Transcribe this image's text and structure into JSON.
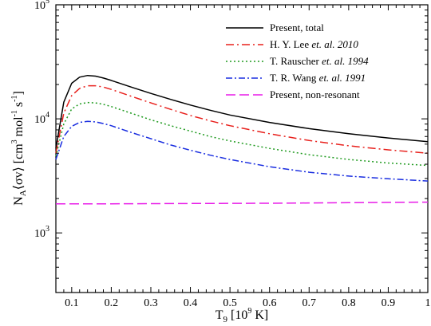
{
  "chart_data": {
    "type": "line",
    "xlabel": {
      "main": "T",
      "sub": "9",
      "rest": " [10",
      "sup": "9",
      "unit": " K]"
    },
    "ylabel": {
      "pre": "N",
      "sub": "A",
      "mid": "⟨σv⟩ [cm",
      "sup1": "3",
      "mid2": " mol",
      "sup2": "-1",
      "mid3": " s",
      "sup3": "-1",
      "post": "]"
    },
    "xlim": [
      0.06,
      1.0
    ],
    "ylim": [
      300,
      100000
    ],
    "yscale": "log",
    "x_ticks": [
      0.1,
      0.2,
      0.3,
      0.4,
      0.5,
      0.6,
      0.7,
      0.8,
      0.9,
      1.0
    ],
    "x_tick_labels": [
      "0.1",
      "0.2",
      "0.3",
      "0.4",
      "0.5",
      "0.6",
      "0.7",
      "0.8",
      "0.9",
      "1"
    ],
    "y_ticks": [
      1000,
      10000,
      100000
    ],
    "y_tick_labels": [
      {
        "base": "10",
        "exp": "3"
      },
      {
        "base": "10",
        "exp": "4"
      },
      {
        "base": "10",
        "exp": "5"
      }
    ],
    "legend_position": "top-right",
    "series": [
      {
        "name": "Present, total",
        "name_parts": [
          {
            "text": "Present, total",
            "italic": false
          }
        ],
        "color": "#000000",
        "dash": "solid",
        "x": [
          0.06,
          0.08,
          0.1,
          0.12,
          0.14,
          0.16,
          0.18,
          0.2,
          0.25,
          0.3,
          0.35,
          0.4,
          0.45,
          0.5,
          0.6,
          0.7,
          0.8,
          0.9,
          1.0
        ],
        "y": [
          5500,
          14000,
          20500,
          23200,
          24000,
          23700,
          22800,
          21700,
          19000,
          16700,
          14800,
          13200,
          11900,
          10800,
          9300,
          8200,
          7400,
          6800,
          6300
        ]
      },
      {
        "name": "H. Y. Lee et. al. 2010",
        "name_parts": [
          {
            "text": "H. Y. Lee ",
            "italic": false
          },
          {
            "text": "et. al. 2010",
            "italic": true
          }
        ],
        "color": "#e8201c",
        "dash": "dashdot",
        "x": [
          0.06,
          0.08,
          0.1,
          0.12,
          0.14,
          0.16,
          0.18,
          0.2,
          0.25,
          0.3,
          0.35,
          0.4,
          0.45,
          0.5,
          0.6,
          0.7,
          0.8,
          0.9,
          1.0
        ],
        "y": [
          5000,
          11200,
          16000,
          18500,
          19500,
          19500,
          19000,
          18100,
          15800,
          13800,
          12100,
          10700,
          9600,
          8700,
          7400,
          6450,
          5800,
          5350,
          5000
        ]
      },
      {
        "name": "T. Rauscher et. al. 1994",
        "name_parts": [
          {
            "text": "T. Rauscher ",
            "italic": false
          },
          {
            "text": "et. al. 1994",
            "italic": true
          }
        ],
        "color": "#1e9a1e",
        "dash": "dotted",
        "x": [
          0.06,
          0.08,
          0.1,
          0.12,
          0.14,
          0.16,
          0.18,
          0.2,
          0.25,
          0.3,
          0.35,
          0.4,
          0.45,
          0.5,
          0.6,
          0.7,
          0.8,
          0.9,
          1.0
        ],
        "y": [
          4700,
          9000,
          12200,
          13500,
          13900,
          13800,
          13400,
          12800,
          11200,
          9800,
          8700,
          7800,
          7000,
          6400,
          5500,
          4850,
          4400,
          4100,
          3900
        ]
      },
      {
        "name": "T. R. Wang et. al. 1991",
        "name_parts": [
          {
            "text": "T. R. Wang ",
            "italic": false
          },
          {
            "text": "et. al. 1991",
            "italic": true
          }
        ],
        "color": "#1a2ee0",
        "dash": "dashdot2",
        "x": [
          0.06,
          0.08,
          0.1,
          0.12,
          0.14,
          0.16,
          0.18,
          0.2,
          0.25,
          0.3,
          0.35,
          0.4,
          0.45,
          0.5,
          0.6,
          0.7,
          0.8,
          0.9,
          1.0
        ],
        "y": [
          4400,
          7000,
          8600,
          9300,
          9500,
          9400,
          9100,
          8700,
          7600,
          6700,
          5900,
          5300,
          4800,
          4400,
          3800,
          3400,
          3150,
          2980,
          2850
        ]
      },
      {
        "name": "Present, non-resonant",
        "name_parts": [
          {
            "text": "Present, non-resonant",
            "italic": false
          }
        ],
        "color": "#e81ce8",
        "dash": "dashed",
        "x": [
          0.06,
          0.2,
          0.4,
          0.6,
          0.8,
          1.0
        ],
        "y": [
          1800,
          1800,
          1810,
          1820,
          1840,
          1860
        ]
      }
    ]
  }
}
